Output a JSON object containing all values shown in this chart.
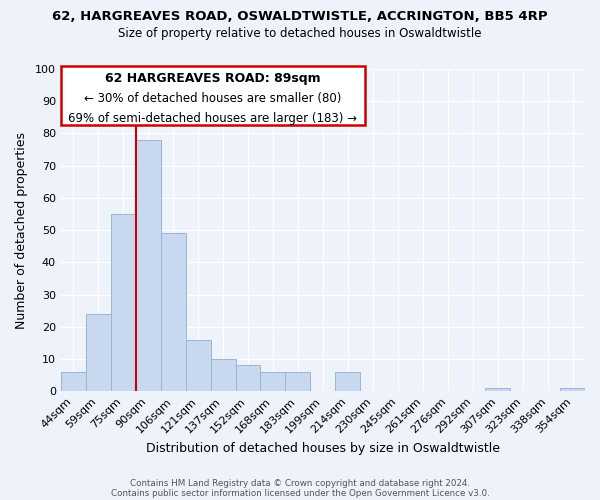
{
  "title_line1": "62, HARGREAVES ROAD, OSWALDTWISTLE, ACCRINGTON, BB5 4RP",
  "title_line2": "Size of property relative to detached houses in Oswaldtwistle",
  "xlabel": "Distribution of detached houses by size in Oswaldtwistle",
  "ylabel": "Number of detached properties",
  "bar_labels": [
    "44sqm",
    "59sqm",
    "75sqm",
    "90sqm",
    "106sqm",
    "121sqm",
    "137sqm",
    "152sqm",
    "168sqm",
    "183sqm",
    "199sqm",
    "214sqm",
    "230sqm",
    "245sqm",
    "261sqm",
    "276sqm",
    "292sqm",
    "307sqm",
    "323sqm",
    "338sqm",
    "354sqm"
  ],
  "bar_heights": [
    6,
    24,
    55,
    78,
    49,
    16,
    10,
    8,
    6,
    6,
    0,
    6,
    0,
    0,
    0,
    0,
    0,
    1,
    0,
    0,
    1
  ],
  "bar_color": "#c8d8ee",
  "bar_edge_color": "#9ab5d8",
  "vline_color": "#cc0000",
  "ylim": [
    0,
    100
  ],
  "yticks": [
    0,
    10,
    20,
    30,
    40,
    50,
    60,
    70,
    80,
    90,
    100
  ],
  "annotation_line1": "62 HARGREAVES ROAD: 89sqm",
  "annotation_line2": "← 30% of detached houses are smaller (80)",
  "annotation_line3": "69% of semi-detached houses are larger (183) →",
  "footer_line1": "Contains HM Land Registry data © Crown copyright and database right 2024.",
  "footer_line2": "Contains public sector information licensed under the Open Government Licence v3.0.",
  "background_color": "#eef2fb",
  "grid_color": "#ffffff"
}
